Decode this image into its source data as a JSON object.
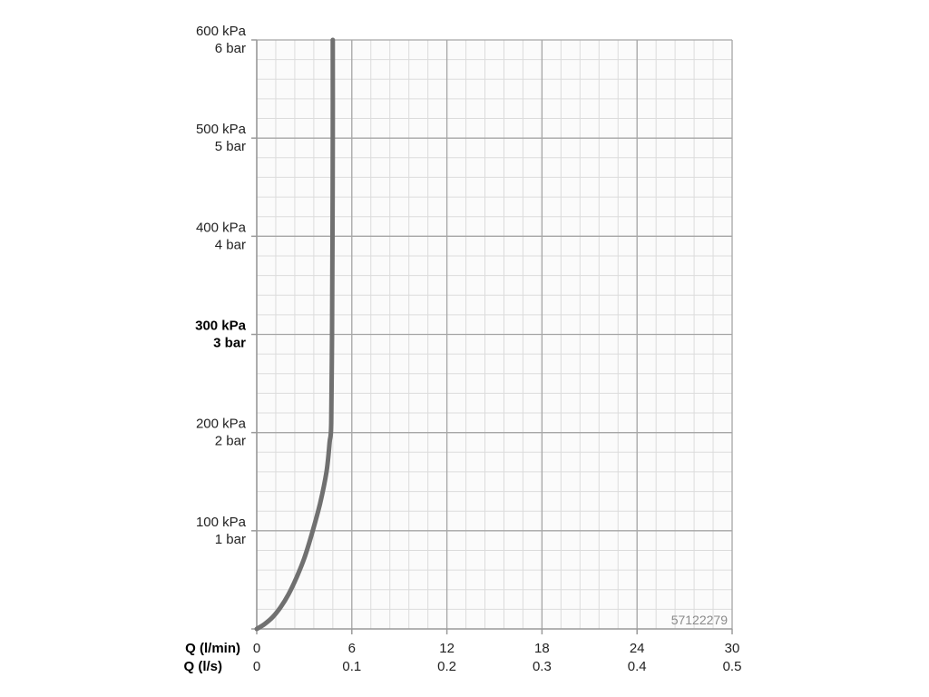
{
  "chart_data": {
    "type": "line",
    "x_axis_labels": [
      "Q (l/min)",
      "Q (l/s)"
    ],
    "x_ticks_lmin": [
      "0",
      "6",
      "12",
      "18",
      "24",
      "30"
    ],
    "x_ticks_ls": [
      "0",
      "0.1",
      "0.2",
      "0.3",
      "0.4",
      "0.5"
    ],
    "xlim": [
      0,
      30
    ],
    "ylim": [
      0,
      600
    ],
    "y_ticks": [
      {
        "value": 100,
        "kpa": "100 kPa",
        "bar": "1 bar",
        "bold": false
      },
      {
        "value": 200,
        "kpa": "200 kPa",
        "bar": "2 bar",
        "bold": false
      },
      {
        "value": 300,
        "kpa": "300 kPa",
        "bar": "3 bar",
        "bold": true
      },
      {
        "value": 400,
        "kpa": "400 kPa",
        "bar": "4 bar",
        "bold": false
      },
      {
        "value": 500,
        "kpa": "500 kPa",
        "bar": "5 bar",
        "bold": false
      },
      {
        "value": 600,
        "kpa": "600 kPa",
        "bar": "6 bar",
        "bold": false
      }
    ],
    "grid": true,
    "series": [
      {
        "color": "#707070",
        "points": [
          [
            0,
            0
          ],
          [
            0.5,
            5
          ],
          [
            1.0,
            12
          ],
          [
            1.5,
            22
          ],
          [
            2.0,
            35
          ],
          [
            2.5,
            52
          ],
          [
            3.0,
            72
          ],
          [
            3.5,
            98
          ],
          [
            4.0,
            128
          ],
          [
            4.4,
            160
          ],
          [
            4.6,
            190
          ],
          [
            4.7,
            210
          ],
          [
            4.75,
            300
          ],
          [
            4.78,
            400
          ],
          [
            4.8,
            500
          ],
          [
            4.8,
            600
          ]
        ]
      }
    ],
    "annotation": "57122279"
  },
  "colors": {
    "major_grid": "#a6a6a6",
    "minor_grid": "#dcdcdc",
    "plot_background": "#fbfbfb",
    "curve": "#707070"
  }
}
